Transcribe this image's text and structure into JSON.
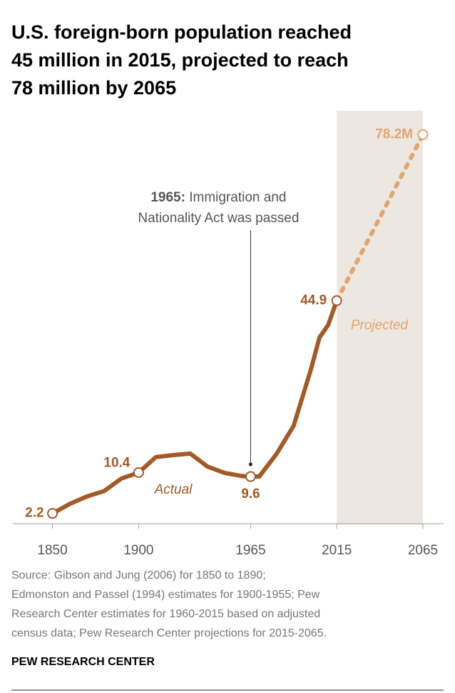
{
  "chart_data": {
    "type": "line",
    "title": [
      "U.S. foreign-born population reached",
      "45 million in 2015, projected to reach",
      "78 million by 2065"
    ],
    "series": [
      {
        "name": "Actual",
        "color": "#a35a26",
        "dash": false,
        "x": [
          1850,
          1860,
          1870,
          1880,
          1890,
          1900,
          1910,
          1920,
          1930,
          1940,
          1950,
          1960,
          1965,
          1970,
          1980,
          1990,
          2000,
          2005,
          2010,
          2015
        ],
        "values": [
          2.2,
          4.1,
          5.6,
          6.7,
          9.2,
          10.4,
          13.5,
          13.9,
          14.2,
          11.6,
          10.3,
          9.7,
          9.6,
          9.6,
          14.1,
          19.8,
          31.1,
          37.5,
          40.0,
          44.9
        ]
      },
      {
        "name": "Projected",
        "color": "#e3a46f",
        "dash": true,
        "x": [
          2015,
          2065
        ],
        "values": [
          44.9,
          78.2
        ]
      }
    ],
    "markers": [
      {
        "x": 1850,
        "value": 2.2,
        "label": "2.2",
        "color": "#a35a26"
      },
      {
        "x": 1900,
        "value": 10.4,
        "label": "10.4",
        "color": "#a35a26"
      },
      {
        "x": 1965,
        "value": 9.6,
        "label": "9.6",
        "color": "#a35a26"
      },
      {
        "x": 2015,
        "value": 44.9,
        "label": "44.9",
        "color": "#a35a26"
      },
      {
        "x": 2065,
        "value": 78.2,
        "label": "78.2M",
        "color": "#e3a46f"
      }
    ],
    "shaded_span": [
      2015,
      2065
    ],
    "annotation": {
      "x": 1965,
      "bold": "1965:",
      "lines": [
        "Immigration and",
        "Nationality Act was passed"
      ]
    },
    "xlim": [
      1827,
      2077
    ],
    "xticks": [
      1850,
      1900,
      1965,
      2015,
      2065
    ],
    "ylim": [
      0,
      83
    ],
    "source": [
      "Source: Gibson and Jung (2006) for 1850 to 1890;",
      "Edmonston and Passel (1994) estimates for 1900-1955; Pew",
      "Research Center estimates for 1960-2015 based on adjusted",
      "census data; Pew Research Center projections for 2015-2065."
    ],
    "brand": "PEW RESEARCH CENTER"
  }
}
